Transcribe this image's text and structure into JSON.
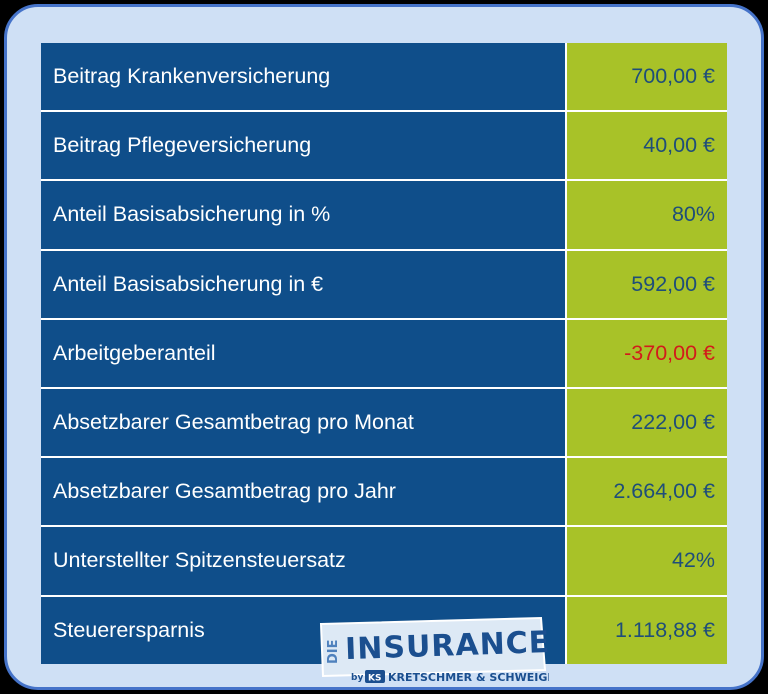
{
  "rows": [
    {
      "label": "Beitrag Krankenversicherung",
      "value": "700,00 €"
    },
    {
      "label": "Beitrag Pflegeversicherung",
      "value": "40,00 €"
    },
    {
      "label": "Anteil Basisabsicherung in %",
      "value": "80%"
    },
    {
      "label": "Anteil Basisabsicherung in €",
      "value": "592,00 €"
    },
    {
      "label": "Arbeitgeberanteil",
      "value": "-370,00 €",
      "negative": true
    },
    {
      "label": "Absetzbarer Gesamtbetrag pro Monat",
      "value": "222,00 €"
    },
    {
      "label": "Absetzbarer Gesamtbetrag pro Jahr",
      "value": "2.664,00 €"
    },
    {
      "label": "Unterstellter Spitzensteuersatz",
      "value": "42%"
    },
    {
      "label": "Steuerersparnis",
      "value": "1.118,88 €"
    }
  ],
  "colors": {
    "label_bg": "#0f4e8a",
    "value_bg": "#a8c228",
    "value_text": "#1f4e79",
    "negative_text": "#d21b1b",
    "frame_bg": "#cfe0f5",
    "frame_border": "#4573c9"
  },
  "logo": {
    "prefix": "DIE",
    "name": "INSURANCER",
    "by": "by",
    "badge": "KS",
    "company": "KRETSCHMER & SCHWEIGER"
  }
}
